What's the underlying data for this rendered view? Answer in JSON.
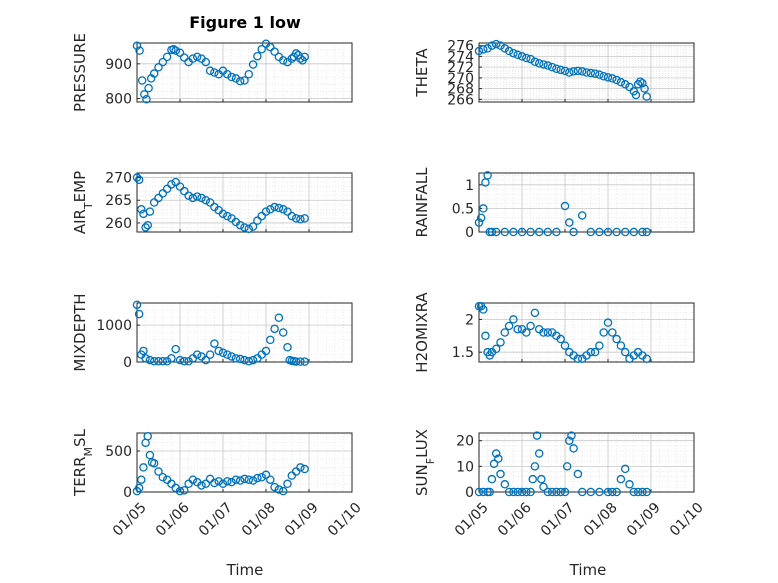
{
  "figure": {
    "title": "Figure 1 low",
    "xlabel": "Time",
    "marker_color": "#0072BD",
    "axes_color": "#262626",
    "grid_color": "#dcdcdc",
    "x_ticks": [
      "01/05",
      "01/06",
      "01/07",
      "01/08",
      "01/09",
      "01/10"
    ]
  },
  "chart_data": [
    {
      "type": "scatter",
      "ylabel": "PRESSURE",
      "ylim": [
        790,
        960
      ],
      "yticks": [
        800,
        900
      ],
      "grid": true,
      "xlim": [
        "2024-01-05",
        "2024-01-10"
      ],
      "x_days": [
        0.0,
        0.06,
        0.12,
        0.17,
        0.22,
        0.27,
        0.33,
        0.4,
        0.5,
        0.6,
        0.7,
        0.8,
        0.85,
        0.9,
        1.0,
        1.1,
        1.2,
        1.3,
        1.4,
        1.5,
        1.6,
        1.7,
        1.8,
        1.9,
        2.0,
        2.1,
        2.2,
        2.3,
        2.4,
        2.5,
        2.6,
        2.7,
        2.8,
        2.9,
        3.0,
        3.1,
        3.2,
        3.3,
        3.4,
        3.5,
        3.6,
        3.65,
        3.7,
        3.75,
        3.8,
        3.85,
        3.9
      ],
      "values": [
        952,
        938,
        852,
        812,
        798,
        830,
        858,
        872,
        890,
        905,
        920,
        940,
        942,
        938,
        932,
        918,
        905,
        915,
        920,
        915,
        905,
        880,
        875,
        870,
        880,
        870,
        862,
        858,
        850,
        852,
        870,
        898,
        922,
        942,
        958,
        948,
        935,
        920,
        910,
        905,
        915,
        920,
        930,
        925,
        915,
        910,
        920
      ]
    },
    {
      "type": "scatter",
      "ylabel": "THETA",
      "ylim": [
        265.5,
        276.5
      ],
      "yticks": [
        266,
        268,
        270,
        272,
        274,
        276
      ],
      "grid": true,
      "x_days": [
        0.0,
        0.1,
        0.2,
        0.3,
        0.4,
        0.5,
        0.6,
        0.7,
        0.8,
        0.9,
        1.0,
        1.1,
        1.2,
        1.3,
        1.4,
        1.5,
        1.6,
        1.7,
        1.8,
        1.9,
        2.0,
        2.1,
        2.2,
        2.3,
        2.4,
        2.5,
        2.6,
        2.7,
        2.8,
        2.9,
        3.0,
        3.1,
        3.2,
        3.3,
        3.4,
        3.5,
        3.6,
        3.65,
        3.7,
        3.75,
        3.8,
        3.85,
        3.9
      ],
      "values": [
        275,
        275.3,
        275.5,
        276,
        276.3,
        276,
        275.5,
        275,
        274.6,
        274.3,
        274,
        273.7,
        273.5,
        273,
        272.7,
        272.5,
        272.3,
        272,
        271.7,
        271.5,
        271.3,
        271,
        271.2,
        271.3,
        271.2,
        271,
        270.9,
        270.8,
        270.6,
        270.3,
        270.1,
        269.9,
        269.6,
        269.2,
        268.8,
        268.3,
        267.5,
        266.8,
        268.8,
        269.3,
        269,
        268,
        266.5
      ]
    },
    {
      "type": "scatter",
      "ylabel": "AIR_TEMP",
      "ylim": [
        258,
        271
      ],
      "yticks": [
        260,
        265,
        270
      ],
      "grid": true,
      "x_days": [
        0.0,
        0.05,
        0.1,
        0.15,
        0.2,
        0.25,
        0.3,
        0.4,
        0.5,
        0.6,
        0.7,
        0.8,
        0.9,
        1.0,
        1.1,
        1.2,
        1.3,
        1.4,
        1.5,
        1.6,
        1.7,
        1.8,
        1.9,
        2.0,
        2.1,
        2.2,
        2.3,
        2.4,
        2.5,
        2.6,
        2.7,
        2.8,
        2.9,
        3.0,
        3.1,
        3.2,
        3.3,
        3.4,
        3.5,
        3.6,
        3.7,
        3.8,
        3.9
      ],
      "values": [
        270,
        269.5,
        263,
        262,
        259,
        259.5,
        262.5,
        264.5,
        265.5,
        266.5,
        267.5,
        268.5,
        269,
        268,
        267,
        266,
        265.5,
        265.8,
        265.5,
        265,
        264.5,
        263.5,
        262.8,
        262,
        261.5,
        261,
        260.2,
        259.5,
        259,
        258.7,
        259.2,
        260.5,
        261.5,
        262.5,
        263,
        263.5,
        263.3,
        263,
        262.5,
        261.5,
        261,
        260.8,
        261
      ]
    },
    {
      "type": "scatter",
      "ylabel": "RAINFALL",
      "ylim": [
        0,
        1.25
      ],
      "yticks": [
        0,
        0.5,
        1
      ],
      "grid": true,
      "x_days": [
        0.0,
        0.05,
        0.1,
        0.15,
        0.2,
        0.25,
        0.3,
        0.4,
        0.6,
        0.8,
        1.0,
        1.2,
        1.4,
        1.6,
        1.8,
        2.0,
        2.1,
        2.2,
        2.4,
        2.6,
        2.8,
        3.0,
        3.2,
        3.4,
        3.6,
        3.8,
        3.9
      ],
      "values": [
        0.2,
        0.3,
        0.5,
        1.05,
        1.2,
        0,
        0,
        0,
        0,
        0,
        0,
        0,
        0,
        0,
        0,
        0.55,
        0.2,
        0,
        0.35,
        0,
        0,
        0,
        0,
        0,
        0,
        0,
        0
      ]
    },
    {
      "type": "scatter",
      "ylabel": "MIXDEPTH",
      "ylim": [
        0,
        1600
      ],
      "yticks": [
        0,
        1000
      ],
      "grid": true,
      "x_days": [
        0.0,
        0.05,
        0.1,
        0.15,
        0.2,
        0.3,
        0.4,
        0.5,
        0.6,
        0.7,
        0.8,
        0.9,
        1.0,
        1.1,
        1.2,
        1.3,
        1.4,
        1.5,
        1.6,
        1.7,
        1.8,
        1.9,
        2.0,
        2.1,
        2.2,
        2.3,
        2.4,
        2.5,
        2.6,
        2.7,
        2.8,
        2.9,
        3.0,
        3.1,
        3.2,
        3.3,
        3.4,
        3.5,
        3.55,
        3.6,
        3.65,
        3.7,
        3.8,
        3.9
      ],
      "values": [
        1550,
        1300,
        200,
        300,
        100,
        50,
        20,
        20,
        20,
        20,
        100,
        350,
        50,
        20,
        20,
        100,
        200,
        150,
        50,
        200,
        500,
        300,
        250,
        200,
        150,
        100,
        80,
        50,
        20,
        50,
        100,
        200,
        300,
        600,
        900,
        1200,
        800,
        400,
        50,
        30,
        20,
        10,
        10,
        10
      ]
    },
    {
      "type": "scatter",
      "ylabel": "H2OMIXRA",
      "ylim": [
        1.35,
        2.25
      ],
      "yticks": [
        1.5,
        2
      ],
      "grid": true,
      "x_days": [
        0.0,
        0.05,
        0.1,
        0.15,
        0.2,
        0.25,
        0.3,
        0.4,
        0.5,
        0.6,
        0.7,
        0.8,
        0.9,
        1.0,
        1.1,
        1.2,
        1.3,
        1.4,
        1.5,
        1.6,
        1.7,
        1.8,
        1.9,
        2.0,
        2.1,
        2.2,
        2.3,
        2.4,
        2.5,
        2.6,
        2.7,
        2.8,
        2.9,
        3.0,
        3.1,
        3.2,
        3.3,
        3.4,
        3.5,
        3.6,
        3.7,
        3.8,
        3.9
      ],
      "values": [
        2.2,
        2.2,
        2.15,
        1.75,
        1.5,
        1.45,
        1.5,
        1.55,
        1.65,
        1.8,
        1.9,
        2.0,
        1.85,
        1.85,
        1.8,
        1.9,
        2.1,
        1.85,
        1.8,
        1.8,
        1.8,
        1.75,
        1.7,
        1.6,
        1.5,
        1.45,
        1.4,
        1.4,
        1.45,
        1.5,
        1.5,
        1.6,
        1.8,
        1.95,
        1.8,
        1.7,
        1.6,
        1.5,
        1.4,
        1.45,
        1.5,
        1.45,
        1.4
      ]
    },
    {
      "type": "scatter",
      "ylabel": "TERR_MSL",
      "ylim": [
        0,
        720
      ],
      "yticks": [
        0,
        500
      ],
      "grid": true,
      "x_days": [
        0.0,
        0.05,
        0.1,
        0.15,
        0.2,
        0.25,
        0.3,
        0.35,
        0.4,
        0.5,
        0.6,
        0.7,
        0.8,
        0.9,
        1.0,
        1.1,
        1.2,
        1.3,
        1.4,
        1.5,
        1.6,
        1.7,
        1.8,
        1.9,
        2.0,
        2.1,
        2.2,
        2.3,
        2.4,
        2.5,
        2.6,
        2.7,
        2.8,
        2.9,
        3.0,
        3.1,
        3.2,
        3.3,
        3.4,
        3.5,
        3.6,
        3.7,
        3.8,
        3.9
      ],
      "values": [
        10,
        50,
        150,
        300,
        600,
        680,
        450,
        360,
        350,
        250,
        180,
        150,
        100,
        50,
        10,
        20,
        100,
        150,
        120,
        80,
        100,
        160,
        110,
        130,
        100,
        130,
        120,
        150,
        140,
        160,
        150,
        140,
        170,
        180,
        210,
        150,
        60,
        30,
        10,
        100,
        200,
        250,
        300,
        280
      ]
    },
    {
      "type": "scatter",
      "ylabel": "SUN_FLUX",
      "ylim": [
        0,
        23
      ],
      "yticks": [
        0,
        10,
        20
      ],
      "grid": true,
      "x_days": [
        0.0,
        0.1,
        0.2,
        0.25,
        0.3,
        0.35,
        0.4,
        0.45,
        0.5,
        0.6,
        0.7,
        0.8,
        0.9,
        1.0,
        1.1,
        1.2,
        1.25,
        1.3,
        1.35,
        1.4,
        1.45,
        1.5,
        1.6,
        1.7,
        1.8,
        1.9,
        2.0,
        2.05,
        2.1,
        2.15,
        2.2,
        2.3,
        2.4,
        2.6,
        2.8,
        3.0,
        3.1,
        3.2,
        3.3,
        3.4,
        3.5,
        3.6,
        3.7,
        3.8,
        3.9
      ],
      "values": [
        0,
        0,
        0,
        0,
        5,
        11,
        15,
        13,
        7,
        3,
        0,
        0,
        0,
        0,
        0,
        0,
        5,
        10,
        22,
        15,
        5,
        2,
        0,
        0,
        0,
        0,
        0,
        10,
        20,
        22,
        17,
        7,
        0,
        0,
        0,
        0,
        0,
        0,
        5,
        9,
        3,
        0,
        0,
        0,
        0
      ]
    }
  ]
}
